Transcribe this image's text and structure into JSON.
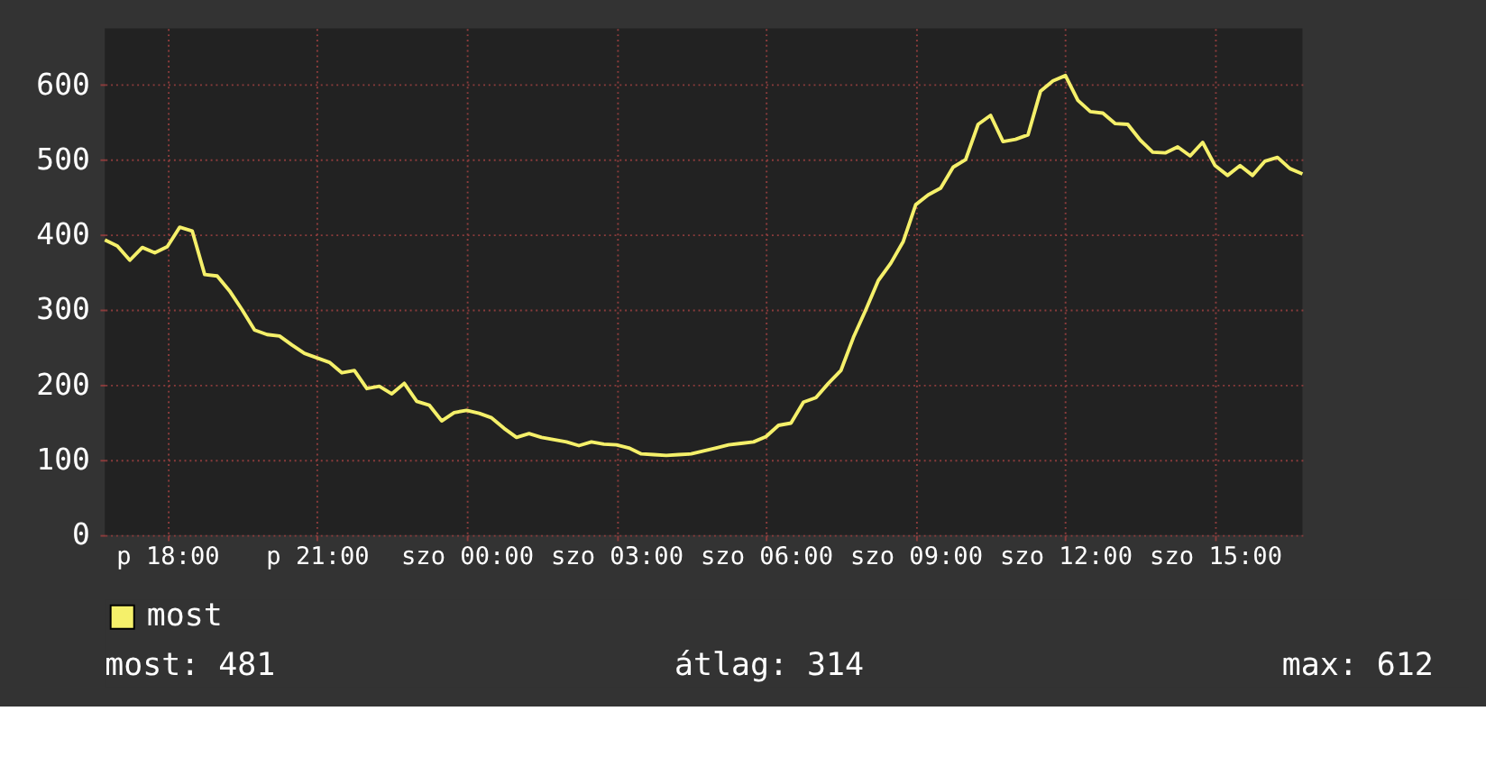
{
  "chart_data": {
    "type": "line",
    "categories": [
      null,
      null,
      null,
      null,
      null,
      "p 18:00",
      null,
      null,
      null,
      null,
      null,
      null,
      null,
      null,
      null,
      null,
      null,
      "p 21:00",
      null,
      null,
      null,
      null,
      null,
      null,
      null,
      null,
      null,
      null,
      null,
      "szo 00:00",
      null,
      null,
      null,
      null,
      null,
      null,
      null,
      null,
      null,
      null,
      null,
      "szo 03:00",
      null,
      null,
      null,
      null,
      null,
      null,
      null,
      null,
      null,
      null,
      null,
      "szo 06:00",
      null,
      null,
      null,
      null,
      null,
      null,
      null,
      null,
      null,
      null,
      null,
      "szo 09:00",
      null,
      null,
      null,
      null,
      null,
      null,
      null,
      null,
      null,
      null,
      null,
      "szo 12:00",
      null,
      null,
      null,
      null,
      null,
      null,
      null,
      null,
      null,
      null,
      null,
      "szo 15:00",
      null,
      null,
      null,
      null,
      null,
      null,
      null
    ],
    "series": [
      {
        "name": "most",
        "color": "#f5f06a",
        "values": [
          393,
          385,
          366,
          383,
          376,
          384,
          410,
          405,
          347,
          345,
          325,
          300,
          273,
          267,
          265,
          253,
          242,
          236,
          230,
          216,
          219,
          195,
          198,
          188,
          202,
          178,
          173,
          152,
          163,
          166,
          162,
          156,
          142,
          130,
          135,
          130,
          127,
          124,
          119,
          124,
          121,
          120,
          116,
          108,
          107,
          106,
          107,
          108,
          112,
          116,
          120,
          122,
          124,
          131,
          146,
          149,
          177,
          183,
          202,
          219,
          263,
          300,
          339,
          362,
          391,
          440,
          453,
          462,
          490,
          500,
          547,
          559,
          524,
          527,
          533,
          591,
          605,
          612,
          579,
          564,
          562,
          548,
          547,
          526,
          510,
          509,
          517,
          505,
          523,
          492,
          479,
          492,
          479,
          498,
          503,
          488,
          481
        ]
      }
    ],
    "ylim": [
      0,
      675
    ],
    "yticks": [
      0,
      100,
      200,
      300,
      400,
      500,
      600
    ],
    "grid": true,
    "legend": "bottom",
    "annotations": [
      "most: 481",
      "átlag: 314",
      "max: 612"
    ]
  }
}
